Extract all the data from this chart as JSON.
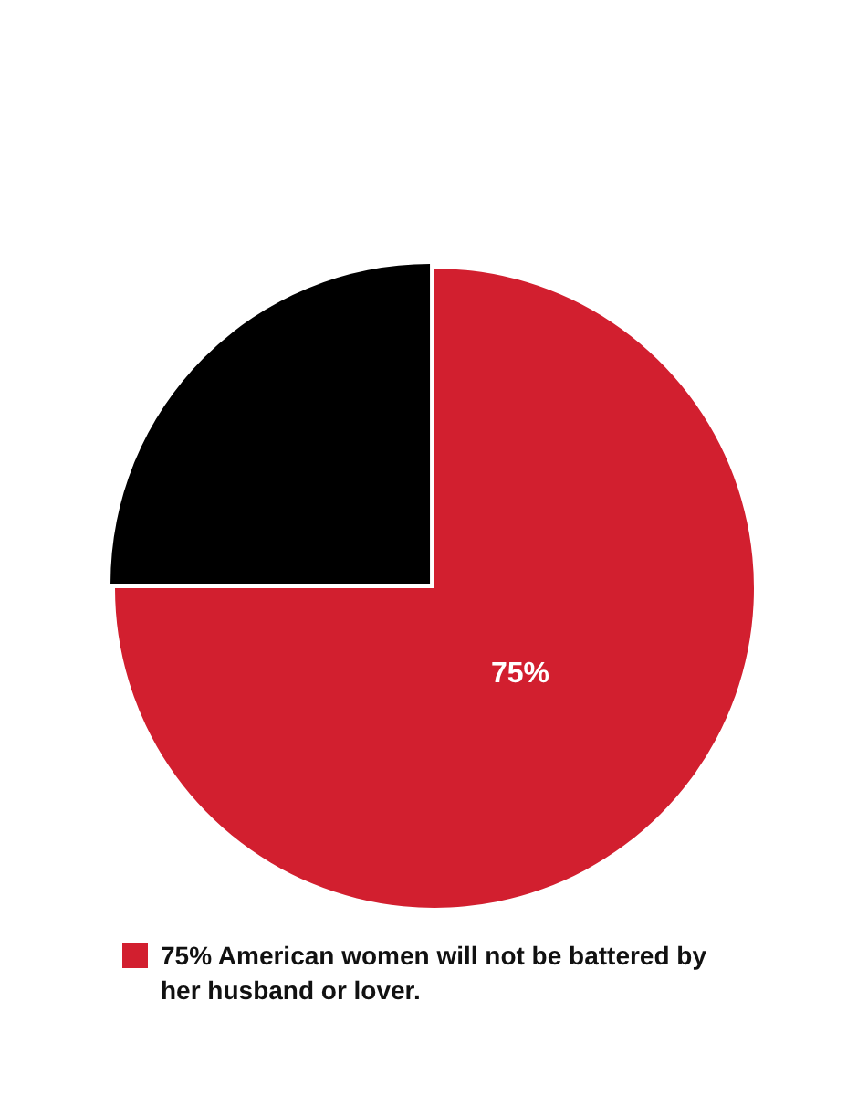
{
  "chart_data": {
    "type": "pie",
    "categories": [
      "75% American women will not be battered by her husband or lover.",
      null
    ],
    "values": [
      75,
      25
    ],
    "colors": [
      "#d21f2f",
      "#000000"
    ],
    "value_labels": [
      "75%",
      null
    ],
    "legend": "bottom"
  }
}
